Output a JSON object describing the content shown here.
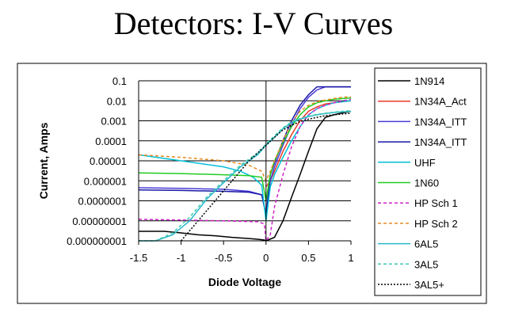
{
  "slide": {
    "title": "Detectors: I-V Curves"
  },
  "chart_data": {
    "type": "line",
    "title": "",
    "xlabel": "Diode Voltage",
    "ylabel": "Current, Amps",
    "xlim": [
      -1.5,
      1
    ],
    "ylim": [
      1e-09,
      0.1
    ],
    "yscale": "log",
    "xticks": [
      "-1.5",
      "-1",
      "-0.5",
      "0",
      "0.5",
      "1"
    ],
    "yticks": [
      "0.1",
      "0.01",
      "0.001",
      "0.0001",
      "0.00001",
      "0.000001",
      "0.0000001",
      "0.00000001",
      "0.000000001"
    ],
    "grid": "horizontal",
    "legend_position": "right",
    "series": [
      {
        "name": "1N914",
        "color": "#000000",
        "dash": "solid",
        "x": [
          -1.5,
          -1.2,
          -1.0,
          -0.8,
          -0.6,
          -0.4,
          -0.2,
          -0.1,
          -0.02,
          0.0,
          0.1,
          0.2,
          0.3,
          0.4,
          0.5,
          0.6,
          0.7,
          0.8,
          0.9,
          1.0
        ],
        "y": [
          3e-09,
          3e-09,
          2.5e-09,
          2e-09,
          1.8e-09,
          1.5e-09,
          1.3e-09,
          1.2e-09,
          1.1e-09,
          1e-09,
          1.5e-09,
          1e-08,
          1.5e-07,
          2e-06,
          3e-05,
          0.0004,
          0.0015,
          0.002,
          0.0025,
          0.003
        ]
      },
      {
        "name": "1N34A_Act",
        "color": "#e8392a",
        "dash": "solid",
        "x": [
          0.0,
          0.05,
          0.1,
          0.2,
          0.3,
          0.4,
          0.5,
          0.6,
          0.7,
          0.8,
          0.9,
          1.0
        ],
        "y": [
          5e-07,
          1e-06,
          3e-06,
          3e-05,
          0.0002,
          0.001,
          0.003,
          0.005,
          0.007,
          0.008,
          0.009,
          0.01
        ]
      },
      {
        "name": "1N34A_ITT",
        "color": "#4b3bd6",
        "dash": "solid",
        "x": [
          -1.5,
          -1.0,
          -0.5,
          -0.2,
          -0.05,
          0.0,
          0.05,
          0.1,
          0.2,
          0.3,
          0.4,
          0.5,
          0.6,
          0.7,
          0.8,
          0.9,
          1.0
        ],
        "y": [
          4.5e-07,
          4.2e-07,
          3.8e-07,
          3e-07,
          2e-07,
          2e-08,
          1e-06,
          5e-06,
          6e-05,
          0.0006,
          0.004,
          0.015,
          0.035,
          0.05,
          0.05,
          0.05,
          0.05
        ]
      },
      {
        "name": "1N34A_ITT",
        "color": "#1a1aa6",
        "dash": "solid",
        "x": [
          -1.5,
          -1.0,
          -0.5,
          -0.2,
          -0.05,
          0.0,
          0.05,
          0.1,
          0.2,
          0.3,
          0.4,
          0.5,
          0.6,
          0.7,
          0.8,
          0.9,
          1.0
        ],
        "y": [
          3.5e-07,
          3.3e-07,
          3e-07,
          2.7e-07,
          2e-07,
          2e-08,
          2e-06,
          8e-06,
          0.0001,
          0.001,
          0.006,
          0.02,
          0.05,
          0.05,
          0.05,
          0.05,
          0.05
        ]
      },
      {
        "name": "UHF",
        "color": "#00c0d8",
        "dash": "solid",
        "x": [
          -1.5,
          -1.0,
          -0.5,
          -0.3,
          -0.15,
          -0.05,
          0.0,
          0.05,
          0.1,
          0.2,
          0.3,
          0.4,
          0.5,
          0.6,
          0.7,
          0.8,
          0.9,
          1.0
        ],
        "y": [
          2e-05,
          1e-05,
          5e-06,
          3e-06,
          1.5e-06,
          6e-07,
          1e-08,
          5e-07,
          2e-06,
          1.5e-05,
          0.0001,
          0.0005,
          0.002,
          0.004,
          0.006,
          0.008,
          0.009,
          0.01
        ]
      },
      {
        "name": "1N60",
        "color": "#22cc22",
        "dash": "solid",
        "x": [
          -1.5,
          -1.0,
          -0.5,
          -0.2,
          -0.05,
          0.0,
          0.05,
          0.1,
          0.2,
          0.3,
          0.4,
          0.5,
          0.6,
          0.7,
          0.8,
          0.9,
          1.0
        ],
        "y": [
          2.5e-06,
          2.3e-06,
          2e-06,
          1.8e-06,
          1.5e-06,
          1e-07,
          2e-06,
          1e-05,
          8e-05,
          0.0005,
          0.002,
          0.005,
          0.008,
          0.01,
          0.012,
          0.013,
          0.014
        ]
      },
      {
        "name": "HP Sch 1",
        "color": "#d020c8",
        "dash": "dashed",
        "x": [
          -1.5,
          -1.0,
          -0.5,
          -0.1,
          -0.02,
          0.0,
          0.05,
          0.1,
          0.2,
          0.3,
          0.4,
          0.5,
          0.6,
          0.7,
          0.8,
          0.9,
          1.0
        ],
        "y": [
          1.2e-08,
          1.1e-08,
          1e-08,
          9e-09,
          7e-09,
          1e-09,
          2e-09,
          5e-08,
          2e-06,
          5e-05,
          0.0005,
          0.002,
          0.004,
          0.006,
          0.008,
          0.01,
          0.012
        ]
      },
      {
        "name": "HP Sch 2",
        "color": "#e88a20",
        "dash": "dashed",
        "x": [
          -1.5,
          -1.0,
          -0.5,
          -0.2,
          -0.05,
          0.0,
          0.05,
          0.1,
          0.2,
          0.3,
          0.4,
          0.5,
          0.6,
          0.7,
          0.8,
          0.9,
          1.0
        ],
        "y": [
          2e-05,
          1.5e-05,
          1e-05,
          6e-06,
          3e-06,
          1e-06,
          3e-06,
          1e-05,
          0.0001,
          0.0008,
          0.003,
          0.006,
          0.009,
          0.011,
          0.013,
          0.015,
          0.016
        ]
      },
      {
        "name": "6AL5",
        "color": "#2ab8c8",
        "dash": "solid",
        "x": [
          -1.5,
          -1.3,
          -1.1,
          -0.9,
          -0.7,
          -0.5,
          -0.3,
          -0.1,
          0.0,
          0.1,
          0.2,
          0.3,
          0.4,
          0.5,
          0.6,
          0.7,
          0.8,
          0.9,
          1.0
        ],
        "y": [
          1e-09,
          1e-09,
          2e-09,
          1e-08,
          1.2e-07,
          8e-07,
          5e-06,
          2e-05,
          6e-05,
          0.00015,
          0.0004,
          0.0008,
          0.0012,
          0.0016,
          0.002,
          0.0023,
          0.0026,
          0.0028,
          0.003
        ]
      },
      {
        "name": "3AL5",
        "color": "#40c8b0",
        "dash": "dashed",
        "x": [
          -1.5,
          -1.3,
          -1.1,
          -0.9,
          -0.7,
          -0.5,
          -0.3,
          -0.1,
          0.0,
          0.1,
          0.2,
          0.3,
          0.4,
          0.5,
          0.6,
          0.7,
          0.8,
          0.9,
          1.0
        ],
        "y": [
          1e-09,
          1e-09,
          2.5e-09,
          1.5e-08,
          1.5e-07,
          1e-06,
          6e-06,
          2.5e-05,
          7e-05,
          0.00018,
          0.00045,
          0.0009,
          0.0013,
          0.0017,
          0.0021,
          0.0024,
          0.0027,
          0.003,
          0.0032
        ]
      },
      {
        "name": "3AL5+",
        "color": "#000000",
        "dash": "dotted",
        "x": [
          -1.0,
          -0.8,
          -0.6,
          -0.4,
          -0.2,
          0.0,
          0.1,
          0.2,
          0.3,
          0.4,
          0.5,
          0.6,
          0.7,
          0.8,
          0.9,
          1.0
        ],
        "y": [
          1e-09,
          1e-08,
          1e-07,
          1e-06,
          1e-05,
          6e-05,
          0.00015,
          0.00035,
          0.0006,
          0.0009,
          0.0012,
          0.0015,
          0.0018,
          0.002,
          0.0022,
          0.0024
        ]
      }
    ]
  }
}
